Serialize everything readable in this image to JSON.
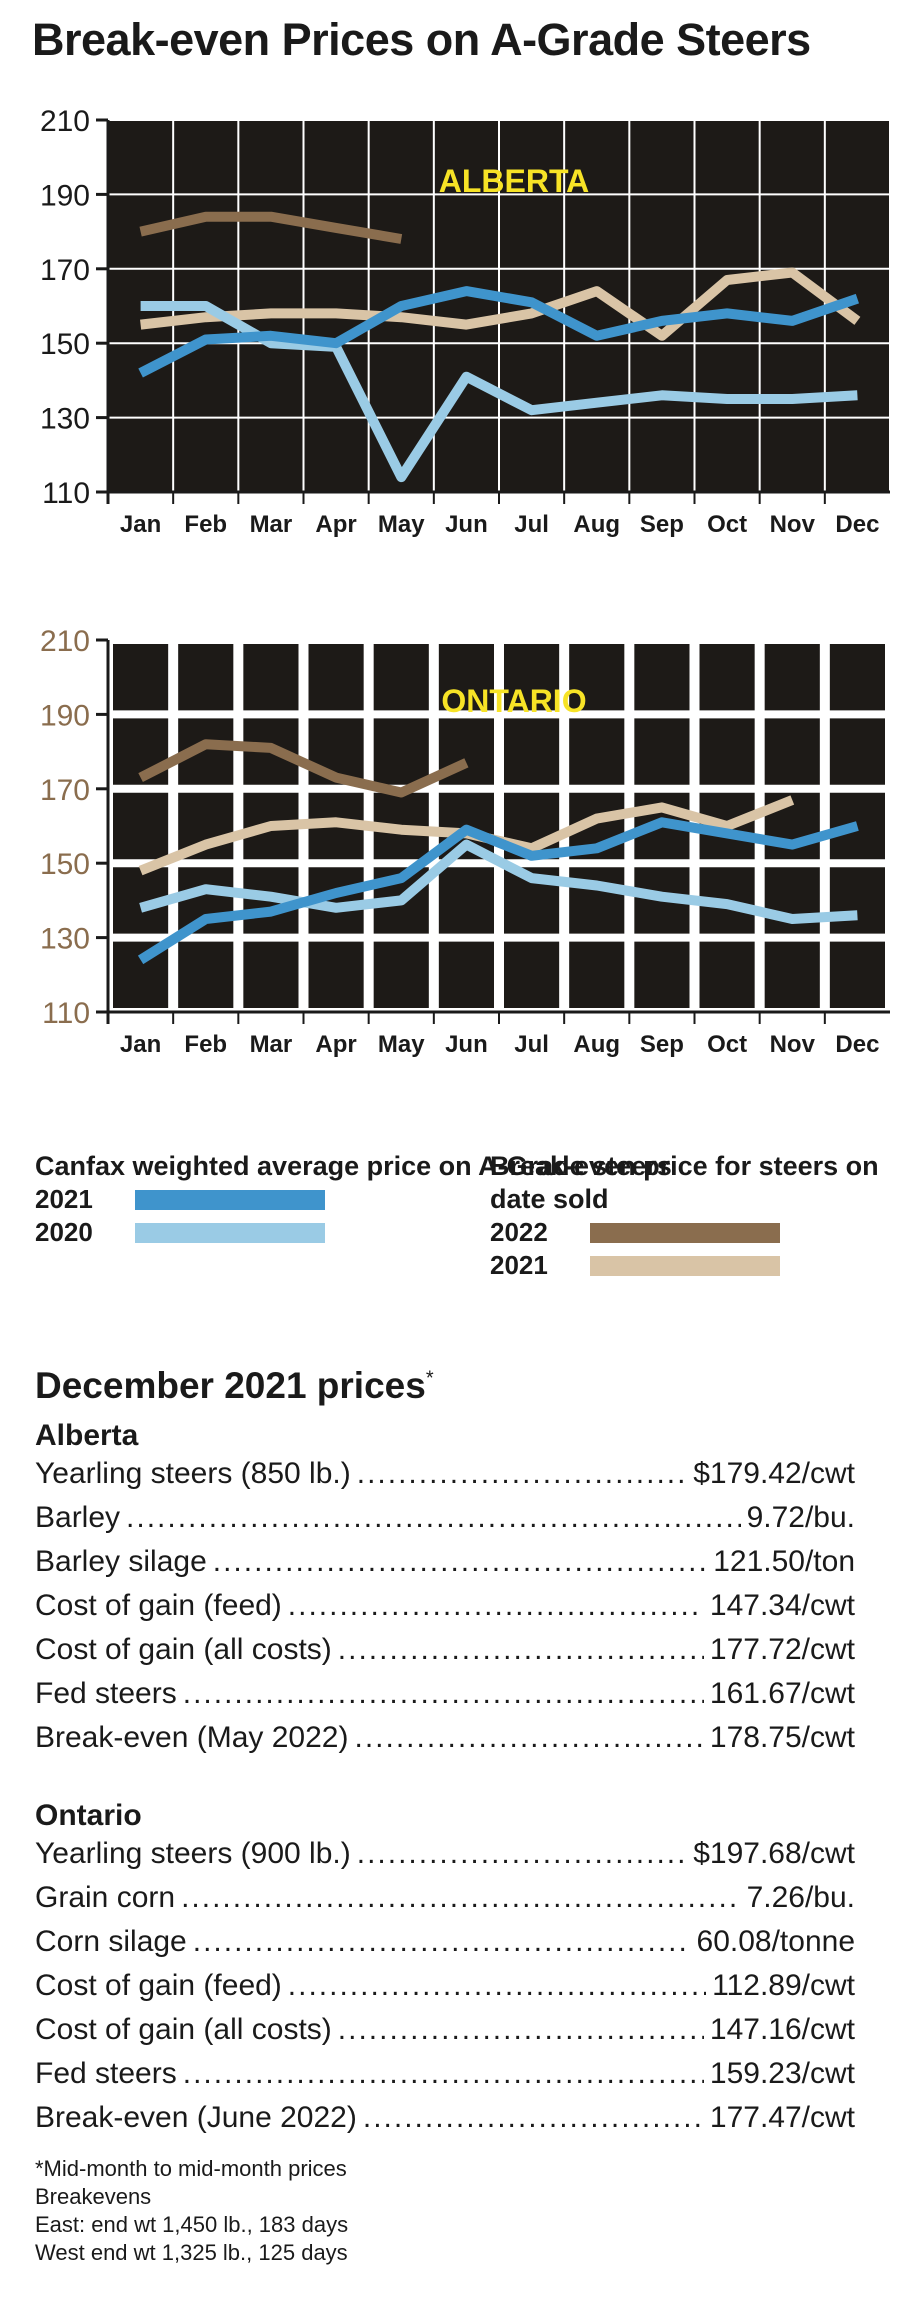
{
  "title": "Break-even Prices on A-Grade Steers",
  "colors": {
    "plot_bg": "#1d1a17",
    "canfax_2021": "#3f94cc",
    "canfax_2020": "#9acbe5",
    "breakeven_2022": "#8a6d4e",
    "breakeven_2021": "#d9c4a6",
    "panel_label": "#f7e326"
  },
  "chart_data": [
    {
      "type": "line",
      "title": "ALBERTA",
      "categories": [
        "Jan",
        "Feb",
        "Mar",
        "Apr",
        "May",
        "Jun",
        "Jul",
        "Aug",
        "Sep",
        "Oct",
        "Nov",
        "Dec"
      ],
      "ylim": [
        110,
        210
      ],
      "yticks": [
        "210",
        "190",
        "170",
        "150",
        "130",
        "110"
      ],
      "grid": true,
      "series": [
        {
          "name": "2022",
          "values": [
            180,
            184,
            184,
            181,
            178,
            null,
            null,
            null,
            null,
            null,
            null,
            null
          ]
        },
        {
          "name": "2021",
          "values": [
            155,
            157,
            158,
            158,
            157,
            155,
            158,
            164,
            152,
            167,
            169,
            156
          ]
        },
        {
          "name": "2020",
          "values": [
            160,
            160,
            150,
            149,
            114,
            141,
            132,
            134,
            136,
            135,
            135,
            136
          ]
        },
        {
          "name": "2021",
          "values": [
            142,
            151,
            152,
            150,
            160,
            164,
            161,
            152,
            156,
            158,
            156,
            162
          ]
        }
      ]
    },
    {
      "type": "line",
      "title": "ONTARIO",
      "categories": [
        "Jan",
        "Feb",
        "Mar",
        "Apr",
        "May",
        "Jun",
        "Jul",
        "Aug",
        "Sep",
        "Oct",
        "Nov",
        "Dec"
      ],
      "ylim": [
        110,
        210
      ],
      "yticks": [
        "210",
        "190",
        "170",
        "150",
        "130",
        "110"
      ],
      "grid": true,
      "series": [
        {
          "name": "2022",
          "values": [
            173,
            182,
            181,
            173,
            169,
            177,
            null,
            null,
            null,
            null,
            null,
            null
          ]
        },
        {
          "name": "2021",
          "values": [
            148,
            155,
            160,
            161,
            159,
            158,
            154,
            162,
            165,
            160,
            167,
            null
          ]
        },
        {
          "name": "2020",
          "values": [
            138,
            143,
            141,
            138,
            140,
            155,
            146,
            144,
            141,
            139,
            135,
            136
          ]
        },
        {
          "name": "2021",
          "values": [
            124,
            135,
            137,
            142,
            146,
            159,
            152,
            154,
            161,
            158,
            155,
            160
          ]
        }
      ]
    }
  ],
  "legend": {
    "left_title": "Canfax weighted average price on A-Grade steers",
    "left_items": [
      "2021",
      "2020"
    ],
    "right_title": "Break-even price for steers on date sold",
    "right_items": [
      "2022",
      "2021"
    ]
  },
  "prices": {
    "heading": "December 2021 prices",
    "asterisk": "*",
    "alberta_title": "Alberta",
    "alberta_rows": [
      {
        "label": "Yearling steers (850 lb.)",
        "value": "$179.42/cwt"
      },
      {
        "label": "Barley",
        "value": "9.72/bu."
      },
      {
        "label": "Barley silage",
        "value": "121.50/ton"
      },
      {
        "label": "Cost of gain (feed)",
        "value": "147.34/cwt"
      },
      {
        "label": "Cost of gain (all costs)",
        "value": "177.72/cwt"
      },
      {
        "label": "Fed steers",
        "value": "161.67/cwt"
      },
      {
        "label": "Break-even (May 2022)",
        "value": "178.75/cwt"
      }
    ],
    "ontario_title": "Ontario",
    "ontario_rows": [
      {
        "label": "Yearling steers (900 lb.)",
        "value": "$197.68/cwt"
      },
      {
        "label": "Grain corn",
        "value": "7.26/bu."
      },
      {
        "label": "Corn silage",
        "value": "60.08/tonne"
      },
      {
        "label": "Cost of gain (feed)",
        "value": "112.89/cwt"
      },
      {
        "label": "Cost of gain (all costs)",
        "value": "147.16/cwt"
      },
      {
        "label": "Fed steers",
        "value": "159.23/cwt"
      },
      {
        "label": "Break-even (June 2022)",
        "value": "177.47/cwt"
      }
    ],
    "notes": [
      "*Mid-month to mid-month prices",
      "Breakevens",
      "East: end wt 1,450 lb., 183 days",
      "West end wt 1,325 lb., 125 days"
    ]
  }
}
